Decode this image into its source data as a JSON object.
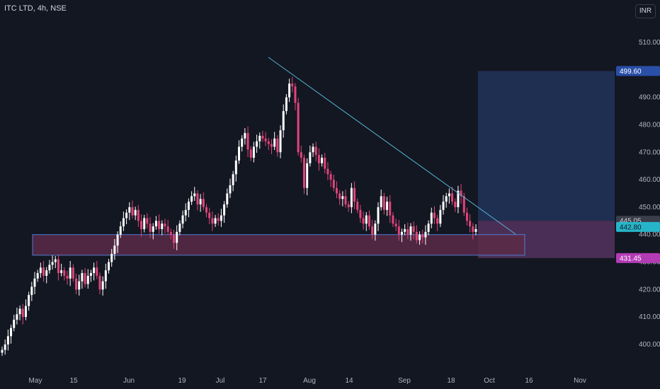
{
  "header": {
    "symbol": "ITC LTD",
    "separator1": ", ",
    "interval": "4h",
    "separator2": ", ",
    "exchange": "NSE",
    "currency": "INR"
  },
  "colors": {
    "background": "#131722",
    "up": "#ffffff",
    "down": "#e0457b",
    "trendline": "#56b4d3",
    "support_zone_fill": "#5a2a48",
    "support_zone_border": "#4f7bd4",
    "target_zone": "#1e2f52",
    "stop_zone": "#4a2e55",
    "last_price_badge": "#26b5c8",
    "target_badge": "#2a4fa8",
    "stop_badge": "#b43bb6",
    "level_badge": "#3a3e4a"
  },
  "badges": {
    "target": "499.60",
    "level": "445.05",
    "last_price": "442.80",
    "stop": "431.45"
  },
  "chart_data": {
    "type": "candlestick",
    "title": "ITC LTD, 4h, NSE",
    "y_axis": {
      "side": "right",
      "min": 396,
      "max": 516,
      "ticks": [
        "510.00",
        "500.00",
        "490.00",
        "480.00",
        "470.00",
        "460.00",
        "450.00",
        "440.00",
        "430.00",
        "420.00",
        "410.00",
        "400.00"
      ]
    },
    "x_axis": {
      "ticks": [
        "May",
        "15",
        "Jun",
        "19",
        "Jul",
        "17",
        "Aug",
        "14",
        "Sep",
        "18",
        "Oct",
        "16",
        "Nov"
      ]
    },
    "series_path_closes": [
      398,
      400,
      403,
      406,
      409,
      411,
      413,
      410,
      414,
      418,
      421,
      424,
      426,
      428,
      425,
      427,
      429,
      430,
      431,
      426,
      427,
      425,
      424,
      428,
      424,
      420,
      423,
      426,
      422,
      425,
      426,
      428,
      425,
      420,
      423,
      427,
      430,
      433,
      436,
      440,
      443,
      446,
      448,
      450,
      447,
      449,
      445,
      442,
      446,
      444,
      441,
      443,
      445,
      442,
      444,
      443,
      441,
      440,
      437,
      441,
      444,
      447,
      449,
      452,
      454,
      455,
      451,
      453,
      450,
      448,
      446,
      444,
      446,
      445,
      447,
      451,
      455,
      458,
      462,
      467,
      472,
      475,
      477,
      471,
      468,
      472,
      474,
      476,
      475,
      474,
      473,
      472,
      475,
      470,
      478,
      485,
      490,
      495,
      494,
      488,
      470,
      468,
      457,
      466,
      470,
      472,
      469,
      466,
      468,
      464,
      462,
      460,
      457,
      455,
      453,
      454,
      451,
      450,
      457,
      452,
      449,
      446,
      444,
      447,
      443,
      440,
      444,
      450,
      454,
      449,
      452,
      447,
      444,
      443,
      440,
      441,
      442,
      440,
      443,
      441,
      438,
      440,
      439,
      441,
      444,
      448,
      446,
      444,
      449,
      452,
      454,
      455,
      452,
      450,
      456,
      454,
      448,
      445,
      443,
      441,
      442
    ],
    "drawings": {
      "trendline": {
        "from": [
          "2023-07-20",
          502.0
        ],
        "to": [
          "2023-10-12",
          440.0
        ]
      },
      "support_zone": {
        "top": 440.0,
        "bottom": 432.5
      },
      "long_position": {
        "entry": 445.05,
        "target": 499.6,
        "stop": 431.45
      }
    },
    "last_price": 442.8
  }
}
